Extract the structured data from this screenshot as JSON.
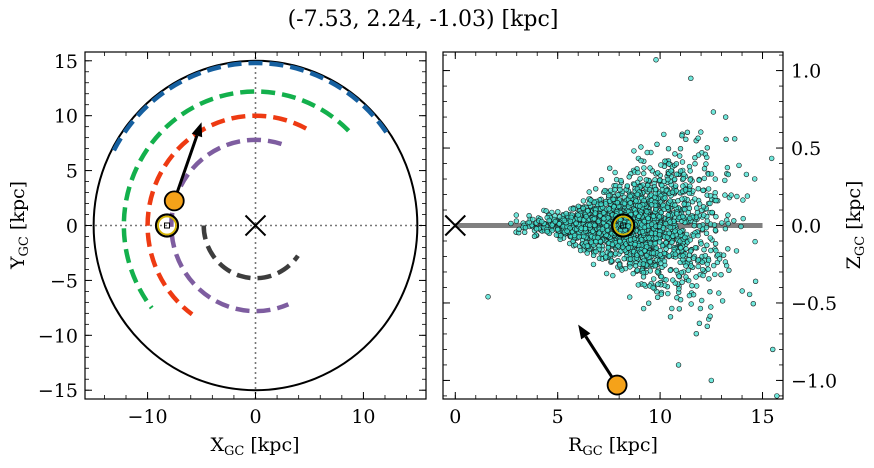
{
  "chart_data": [
    {
      "type": "line",
      "panel": "left",
      "title": "(-7.53, 2.24, -1.03) [kpc]",
      "xlabel": "X",
      "xlabel_sub": "GC",
      "xlabel_unit": " [kpc]",
      "ylabel": "Y",
      "ylabel_sub": "GC",
      "ylabel_unit": " [kpc]",
      "xlim": [
        -15.8,
        15.8
      ],
      "ylim": [
        -15.8,
        15.8
      ],
      "xticks": [
        -10,
        0,
        10
      ],
      "xtick_labels": [
        "−10",
        "0",
        "10"
      ],
      "yticks": [
        -15,
        -10,
        -5,
        0,
        5,
        10,
        15
      ],
      "ytick_labels": [
        "−15",
        "−10",
        "−5",
        "0",
        "5",
        "10",
        "15"
      ],
      "boundary_circle_radius": 15,
      "colors": {
        "blue": "#1660a0",
        "green": "#13b04c",
        "red": "#ee3a12",
        "purple": "#7e5da0",
        "dark": "#3d3d3d",
        "star": "#f5a219",
        "sun": "#d4b200"
      },
      "arcs": [
        {
          "color": "#1660a0",
          "radius": 14.8,
          "start_deg": 35,
          "end_deg": 154
        },
        {
          "color": "#13b04c",
          "radius": 12.2,
          "start_deg": 45,
          "end_deg": 218
        },
        {
          "color": "#ee3a12",
          "radius": 10.0,
          "start_deg": 62,
          "end_deg": 234
        },
        {
          "color": "#7e5da0",
          "radius": 7.8,
          "start_deg": 72,
          "end_deg": 293
        },
        {
          "color": "#3d3d3d",
          "radius": 4.8,
          "start_deg": 180,
          "end_deg": 325
        }
      ],
      "star": {
        "x": -7.53,
        "y": 2.24
      },
      "velocity_arrow_tip": {
        "x": -5.0,
        "y": 9.4
      },
      "sun": {
        "x": -8.2,
        "y": 0.0
      },
      "galactic_center": {
        "x": 0,
        "y": 0
      }
    },
    {
      "type": "scatter",
      "panel": "right",
      "xlabel": "R",
      "xlabel_sub": "GC",
      "xlabel_unit": " [kpc]",
      "ylabel": "Z",
      "ylabel_sub": "GC",
      "ylabel_unit": " [kpc]",
      "xlim": [
        -0.6,
        16.0
      ],
      "ylim": [
        -1.12,
        1.12
      ],
      "xticks": [
        0,
        5,
        10,
        15
      ],
      "xtick_labels": [
        "0",
        "5",
        "10",
        "15"
      ],
      "yticks": [
        -1.0,
        -0.5,
        0.0,
        0.5,
        1.0
      ],
      "ytick_labels": [
        "−1.0",
        "−0.5",
        "0.0",
        "0.5",
        "1.0"
      ],
      "disk_plane": {
        "x0": 0,
        "x1": 15
      },
      "scatter_color": "#40e0d0",
      "scatter_n": 2200,
      "scatter_seed": 7,
      "star": {
        "x": 7.9,
        "y": -1.03
      },
      "velocity_arrow_tip": {
        "x": 6.0,
        "y": -0.64
      },
      "sun": {
        "x": 8.2,
        "y": 0.0
      },
      "galactic_center": {
        "x": 0,
        "y": 0
      }
    }
  ]
}
